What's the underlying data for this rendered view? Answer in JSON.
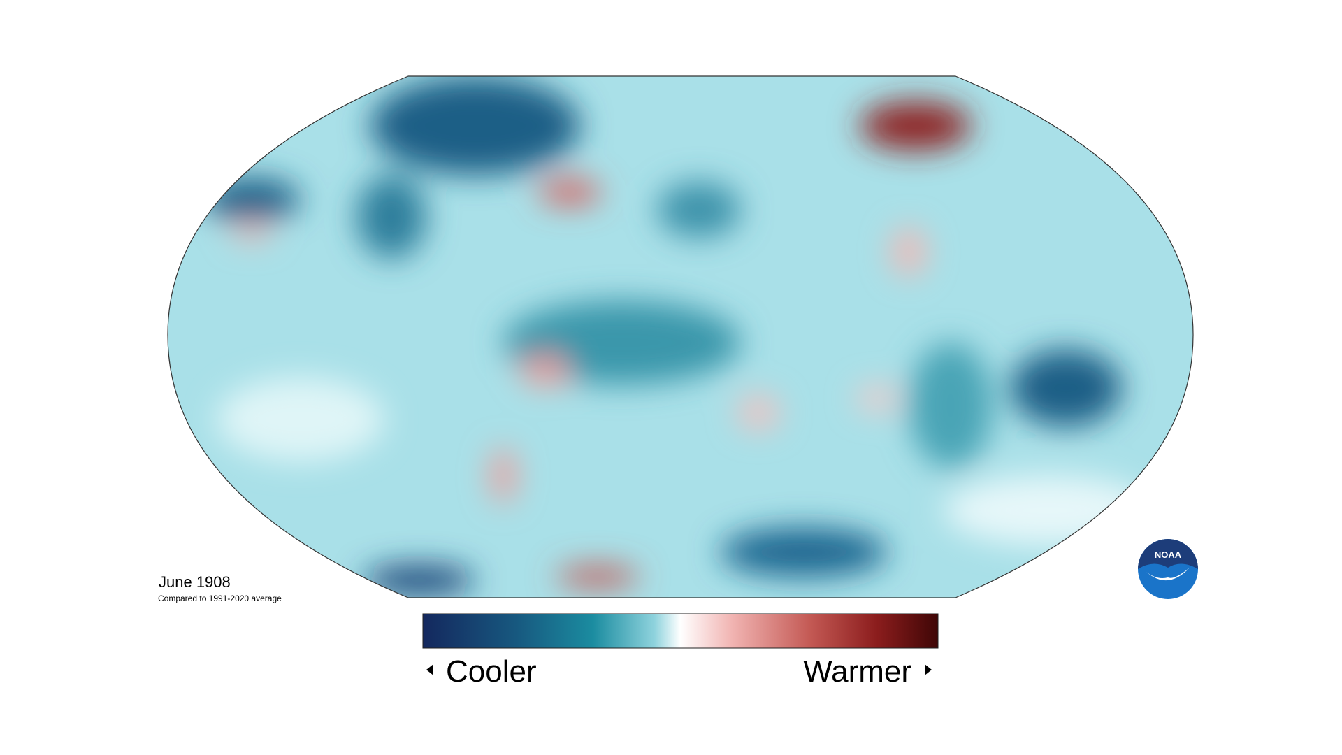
{
  "map": {
    "title": "June 1908",
    "subtitle": "Compared to 1991-2020 average"
  },
  "legend": {
    "low_label": "Cooler",
    "high_label": "Warmer"
  },
  "logo": {
    "text": "NOAA"
  }
}
